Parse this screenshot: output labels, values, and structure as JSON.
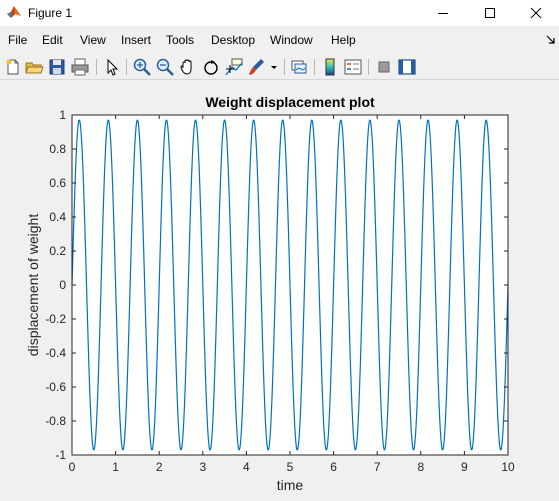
{
  "window": {
    "title": "Figure 1",
    "minimize_icon": "minimize-icon",
    "maximize_icon": "maximize-icon",
    "close_icon": "close-icon"
  },
  "menu": {
    "items": [
      "File",
      "Edit",
      "View",
      "Insert",
      "Tools",
      "Desktop",
      "Window",
      "Help"
    ]
  },
  "toolbar": {
    "icons": [
      "new-figure-icon",
      "open-file-icon",
      "save-icon",
      "print-icon",
      "edit-plot-icon",
      "zoom-in-icon",
      "zoom-out-icon",
      "pan-icon",
      "rotate-3d-icon",
      "data-cursor-icon",
      "brush-icon",
      "link-plot-icon",
      "colorbar-icon",
      "legend-icon",
      "hide-plot-tools-icon",
      "show-plot-tools-icon"
    ]
  },
  "chart_data": {
    "type": "line",
    "title": "Weight displacement plot",
    "xlabel": "time",
    "ylabel": "displacement of weight",
    "xlim": [
      0,
      10
    ],
    "ylim": [
      -1,
      1
    ],
    "xticks": [
      0,
      1,
      2,
      3,
      4,
      5,
      6,
      7,
      8,
      9,
      10
    ],
    "yticks": [
      -1,
      -0.8,
      -0.6,
      -0.4,
      -0.2,
      0,
      0.2,
      0.4,
      0.6,
      0.8,
      1
    ],
    "xtick_labels": [
      "0",
      "1",
      "2",
      "3",
      "4",
      "5",
      "6",
      "7",
      "8",
      "9",
      "10"
    ],
    "ytick_labels": [
      "-1",
      "-0.8",
      "-0.6",
      "-0.4",
      "-0.2",
      "0",
      "0.2",
      "0.4",
      "0.6",
      "0.8",
      "1"
    ],
    "grid": false,
    "series": [
      {
        "function": "0.97*sin(2*pi*1.5*t)",
        "amplitude": 0.97,
        "frequency_hz": 1.5,
        "t_start": 0,
        "t_end": 10,
        "color": "#0072bd"
      }
    ]
  }
}
